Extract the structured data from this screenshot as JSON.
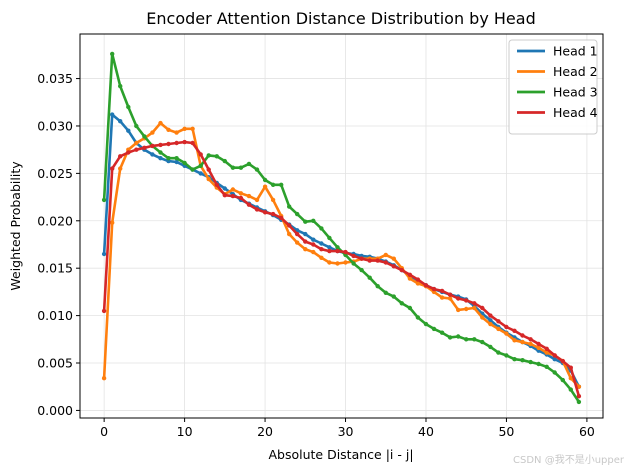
{
  "watermark": "CSDN @我不是小upper",
  "chart_data": {
    "type": "line",
    "title": "Encoder Attention Distance Distribution by Head",
    "xlabel": "Absolute Distance |i - j|",
    "ylabel": "Weighted Probability",
    "xlim": [
      -3,
      62
    ],
    "ylim": [
      -0.0008,
      0.0397
    ],
    "xticks": [
      0,
      10,
      20,
      30,
      40,
      50,
      60
    ],
    "yticks": [
      0.0,
      0.005,
      0.01,
      0.015,
      0.02,
      0.025,
      0.03,
      0.035
    ],
    "ytick_labels": [
      "0.000",
      "0.005",
      "0.010",
      "0.015",
      "0.020",
      "0.025",
      "0.030",
      "0.035"
    ],
    "grid": true,
    "legend": "top-right",
    "x": [
      0,
      1,
      2,
      3,
      4,
      5,
      6,
      7,
      8,
      9,
      10,
      11,
      12,
      13,
      14,
      15,
      16,
      17,
      18,
      19,
      20,
      21,
      22,
      23,
      24,
      25,
      26,
      27,
      28,
      29,
      30,
      31,
      32,
      33,
      34,
      35,
      36,
      37,
      38,
      39,
      40,
      41,
      42,
      43,
      44,
      45,
      46,
      47,
      48,
      49,
      50,
      51,
      52,
      53,
      54,
      55,
      56,
      57,
      58,
      59
    ],
    "series": [
      {
        "name": "Head 1",
        "color": "#1f77b4",
        "values": [
          0.0165,
          0.0312,
          0.0305,
          0.0295,
          0.0282,
          0.0275,
          0.027,
          0.0266,
          0.0263,
          0.0262,
          0.0258,
          0.0254,
          0.025,
          0.0246,
          0.024,
          0.0234,
          0.0228,
          0.0222,
          0.0218,
          0.0214,
          0.021,
          0.0206,
          0.0201,
          0.0196,
          0.019,
          0.0186,
          0.018,
          0.0176,
          0.0172,
          0.0168,
          0.0166,
          0.0165,
          0.0163,
          0.0162,
          0.016,
          0.0157,
          0.0153,
          0.0148,
          0.0142,
          0.0137,
          0.0132,
          0.0128,
          0.0125,
          0.0122,
          0.012,
          0.0117,
          0.011,
          0.0102,
          0.0095,
          0.0088,
          0.0082,
          0.0077,
          0.0072,
          0.0068,
          0.0063,
          0.0059,
          0.0054,
          0.005,
          0.0042,
          0.0025
        ]
      },
      {
        "name": "Head 2",
        "color": "#ff7f0e",
        "values": [
          0.0034,
          0.0198,
          0.0255,
          0.0275,
          0.0282,
          0.0287,
          0.0293,
          0.0303,
          0.0296,
          0.0293,
          0.0297,
          0.0297,
          0.0258,
          0.0244,
          0.0235,
          0.0228,
          0.0233,
          0.0229,
          0.0226,
          0.0222,
          0.0236,
          0.0222,
          0.0205,
          0.0186,
          0.0177,
          0.017,
          0.0167,
          0.0161,
          0.0156,
          0.0155,
          0.0156,
          0.0157,
          0.016,
          0.016,
          0.016,
          0.0164,
          0.016,
          0.015,
          0.0139,
          0.0134,
          0.0131,
          0.0125,
          0.0119,
          0.0118,
          0.0106,
          0.0107,
          0.0108,
          0.0098,
          0.0091,
          0.0086,
          0.0081,
          0.0074,
          0.0072,
          0.007,
          0.0066,
          0.0061,
          0.0058,
          0.0052,
          0.0034,
          0.0025
        ]
      },
      {
        "name": "Head 3",
        "color": "#2ca02c",
        "values": [
          0.0222,
          0.0376,
          0.0342,
          0.032,
          0.03,
          0.0289,
          0.0279,
          0.0272,
          0.0266,
          0.0266,
          0.0261,
          0.0254,
          0.0258,
          0.0269,
          0.0268,
          0.0263,
          0.0256,
          0.0256,
          0.026,
          0.0254,
          0.0243,
          0.0238,
          0.0238,
          0.0215,
          0.0207,
          0.0199,
          0.02,
          0.0192,
          0.0182,
          0.0172,
          0.0164,
          0.0155,
          0.0148,
          0.014,
          0.0131,
          0.0124,
          0.012,
          0.0113,
          0.0108,
          0.0098,
          0.0091,
          0.0086,
          0.0082,
          0.0077,
          0.0078,
          0.0075,
          0.0075,
          0.0072,
          0.0067,
          0.0061,
          0.0058,
          0.0054,
          0.0053,
          0.0051,
          0.0049,
          0.0046,
          0.004,
          0.0032,
          0.0022,
          0.0009
        ]
      },
      {
        "name": "Head 4",
        "color": "#d62728",
        "values": [
          0.0105,
          0.0255,
          0.0268,
          0.0272,
          0.0275,
          0.0277,
          0.0279,
          0.028,
          0.0281,
          0.0282,
          0.0283,
          0.0282,
          0.027,
          0.0254,
          0.0238,
          0.0227,
          0.0226,
          0.0224,
          0.0217,
          0.0212,
          0.0209,
          0.0207,
          0.0203,
          0.0195,
          0.0186,
          0.0178,
          0.0175,
          0.017,
          0.0168,
          0.0168,
          0.0167,
          0.0163,
          0.016,
          0.0158,
          0.0158,
          0.0156,
          0.0152,
          0.0148,
          0.0143,
          0.0138,
          0.0132,
          0.0128,
          0.0126,
          0.0122,
          0.0118,
          0.0116,
          0.0113,
          0.0108,
          0.01,
          0.0094,
          0.0088,
          0.0084,
          0.0079,
          0.0075,
          0.007,
          0.0065,
          0.0058,
          0.0052,
          0.0045,
          0.0015
        ]
      }
    ]
  }
}
